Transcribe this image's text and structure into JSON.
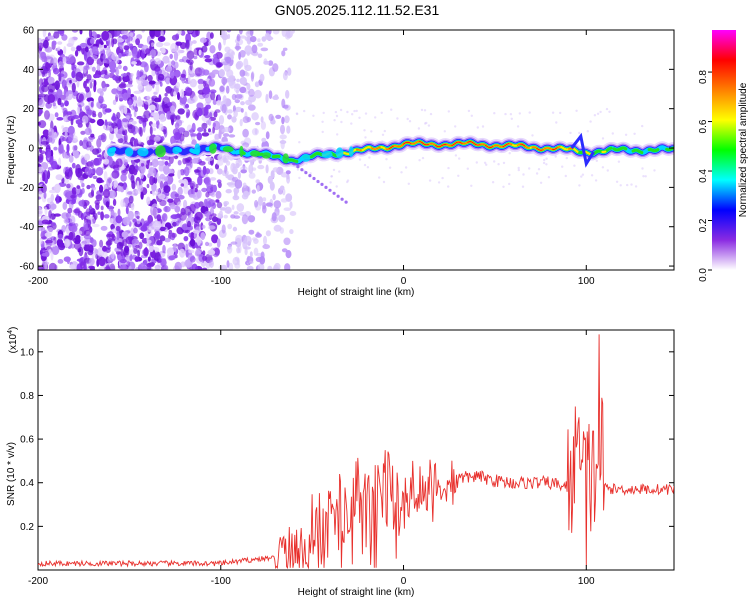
{
  "figure": {
    "title": "GN05.2025.112.11.52.E31"
  },
  "chart_data": [
    {
      "type": "heatmap",
      "title": "GN05.2025.112.11.52.E31",
      "xlabel": "Height of straight line (km)",
      "ylabel": "Frequency (Hz)",
      "xlim": [
        -200,
        148
      ],
      "ylim": [
        -62,
        60
      ],
      "xticks": [
        -200,
        -100,
        0,
        100
      ],
      "yticks": [
        60,
        40,
        20,
        0,
        -20,
        -40,
        -60
      ],
      "colorbar": {
        "label": "Normalized spectral amplitude",
        "range": [
          0.0,
          0.97
        ],
        "ticks": [
          0.0,
          0.2,
          0.4,
          0.6,
          0.8
        ],
        "colormap": [
          "#ffffff",
          "#8a2be2",
          "#0000ff",
          "#00ffff",
          "#00ff00",
          "#ffff00",
          "#ff8000",
          "#ff0000",
          "#ff00ff"
        ]
      },
      "noise_region_x": [
        -200,
        -60
      ],
      "ridge": [
        {
          "x": -160,
          "f": -2,
          "amp": 0.25
        },
        {
          "x": -140,
          "f": -2,
          "amp": 0.2
        },
        {
          "x": -120,
          "f": -1,
          "amp": 0.25
        },
        {
          "x": -100,
          "f": 0,
          "amp": 0.35
        },
        {
          "x": -80,
          "f": -3,
          "amp": 0.4
        },
        {
          "x": -60,
          "f": -6,
          "amp": 0.45
        },
        {
          "x": -40,
          "f": -3,
          "amp": 0.6
        },
        {
          "x": -20,
          "f": -1,
          "amp": 0.75
        },
        {
          "x": 0,
          "f": 2,
          "amp": 0.85
        },
        {
          "x": 20,
          "f": 2,
          "amp": 0.9
        },
        {
          "x": 40,
          "f": 2,
          "amp": 0.92
        },
        {
          "x": 60,
          "f": 1,
          "amp": 0.8
        },
        {
          "x": 80,
          "f": 0,
          "amp": 0.85
        },
        {
          "x": 100,
          "f": -2,
          "amp": 0.6
        },
        {
          "x": 120,
          "f": -1,
          "amp": 0.5
        },
        {
          "x": 148,
          "f": -1,
          "amp": 0.45
        }
      ]
    },
    {
      "type": "line",
      "xlabel": "Height of straight line (km)",
      "ylabel": "SNR (10 * v/v)",
      "y_multiplier_label": "(x10",
      "y_multiplier_exp": "4",
      "xlim": [
        -200,
        148
      ],
      "ylim": [
        0,
        1.1
      ],
      "xticks": [
        -200,
        -100,
        0,
        100
      ],
      "yticks": [
        0.2,
        0.4,
        0.6,
        0.8,
        1.0
      ],
      "color": "#e8302c",
      "series": [
        {
          "x": [
            -200,
            -150,
            -100,
            -80,
            -65,
            -60,
            -55,
            -50,
            -40,
            -30,
            -25,
            -20,
            -10,
            0,
            10,
            20,
            30,
            40,
            50,
            60,
            70,
            80,
            90,
            95,
            100,
            105,
            108,
            110,
            115,
            130,
            148
          ],
          "values": [
            0.03,
            0.03,
            0.03,
            0.05,
            0.06,
            0.12,
            0.16,
            0.2,
            0.24,
            0.3,
            0.35,
            0.3,
            0.38,
            0.34,
            0.38,
            0.4,
            0.42,
            0.43,
            0.41,
            0.4,
            0.4,
            0.4,
            0.38,
            0.5,
            0.4,
            0.45,
            0.6,
            0.38,
            0.37,
            0.37,
            0.37
          ]
        }
      ],
      "peaks": [
        {
          "x": 107,
          "y": 1.08
        },
        {
          "x": 96,
          "y": 0.7
        },
        {
          "x": 100,
          "y": 0.02
        },
        {
          "x": 5,
          "y": 0.5
        },
        {
          "x": -8,
          "y": 0.53
        }
      ]
    }
  ]
}
